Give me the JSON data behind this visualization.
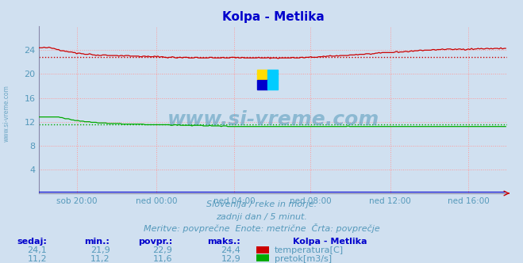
{
  "title": "Kolpa - Metlika",
  "title_color": "#0000cc",
  "bg_color": "#d0e0f0",
  "plot_bg_color": "#d0e0f0",
  "grid_color": "#ff9999",
  "x_labels": [
    "sob 20:00",
    "ned 00:00",
    "ned 04:00",
    "ned 08:00",
    "ned 12:00",
    "ned 16:00"
  ],
  "x_ticks_norm": [
    0.0833,
    0.25,
    0.4167,
    0.5833,
    0.75,
    0.9167
  ],
  "y_min": 0,
  "y_max": 28,
  "y_ticks": [
    4,
    8,
    12,
    16,
    20,
    24
  ],
  "temp_color": "#cc0000",
  "flow_color": "#00aa00",
  "height_color": "#0000cc",
  "watermark_color": "#5599bb",
  "subtitle1": "Slovenija / reke in morje.",
  "subtitle2": "zadnji dan / 5 minut.",
  "subtitle3": "Meritve: povprečne  Enote: metrične  Črta: povprečje",
  "subtitle_color": "#5599bb",
  "table_header_color": "#0000cc",
  "table_value_color": "#5599bb",
  "table_headers": [
    "sedaj:",
    "min.:",
    "povpr.:",
    "maks.:"
  ],
  "temp_row": [
    "24,1",
    "21,9",
    "22,9",
    "24,4"
  ],
  "flow_row": [
    "11,2",
    "11,2",
    "11,6",
    "12,9"
  ],
  "temp_avg_value": 22.9,
  "flow_avg_value": 11.6,
  "n_points": 288
}
